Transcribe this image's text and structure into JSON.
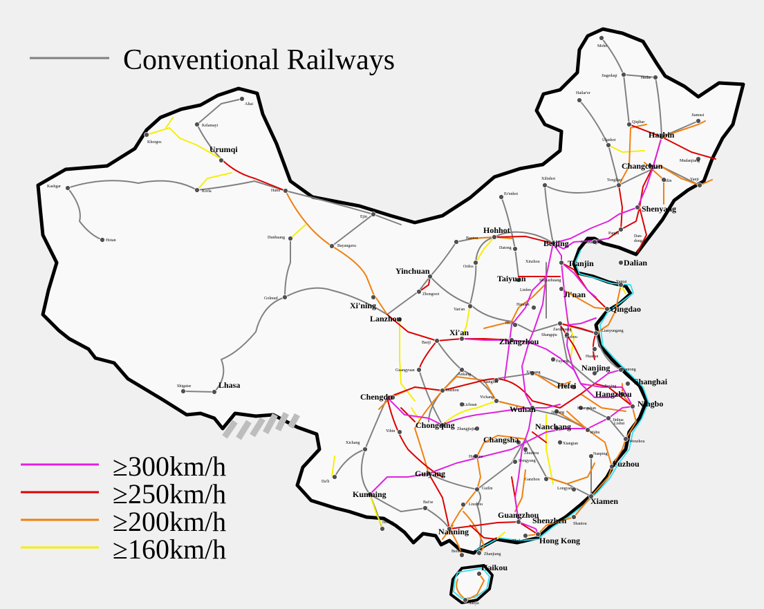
{
  "legend": {
    "conventional": "Conventional Railways",
    "speed_300": "≥300km/h",
    "speed_250": "≥250km/h",
    "speed_200": "≥200km/h",
    "speed_160": "≥160km/h"
  },
  "colors": {
    "conventional": "#808080",
    "speed_300": "#e020e0",
    "speed_250": "#dd0000",
    "speed_200": "#f08010",
    "speed_160": "#f5f000",
    "coast_highlight": "#30e0f0",
    "land": "#f9f9f9",
    "border": "#000000",
    "background": "#f0f0f0"
  },
  "cities_major": [
    "Urumqi",
    "Lhasa",
    "Hohhot",
    "Yinchuan",
    "Xi'ning",
    "Lanzhou",
    "Taiyuan",
    "Xi'an",
    "Zhengzhou",
    "Chengdu",
    "Chongqing",
    "Wuhan",
    "Changsha",
    "Nanchang",
    "Guiyang",
    "Kunming",
    "Nanning",
    "Guangzhou",
    "Shenzhen",
    "Hong Kong",
    "Haikou",
    "Fuzhou",
    "Xiamen",
    "Hangzhou",
    "Ningbo",
    "Shanghai",
    "Nanjing",
    "Hefei",
    "Ji'nan",
    "Qingdao",
    "Beijing",
    "Tianjin",
    "Dalian",
    "Shenyang",
    "Changchun",
    "Harbin"
  ],
  "cities_minor": [
    "Mohe",
    "Jiagedaqi",
    "Heihe",
    "Hailar'er",
    "Qiqihar",
    "Jiamusi",
    "Ulanhot",
    "Mudanjiang",
    "Xilinhot",
    "Tongliao",
    "Jilin",
    "Yanji",
    "Er'enhot",
    "Dan-",
    "dong",
    "Panjin",
    "Baotou",
    "Datong",
    "Qinhuangdao",
    "Ordos",
    "Yan'an",
    "Handan",
    "Yantai",
    "Lianyungang",
    "Xuzhou",
    "Shangqiu",
    "Huai'an",
    "Fuyang",
    "Xinyang",
    "Nantong",
    "Xiangfan",
    "Yichang",
    "Lichuan",
    "Dazhou",
    "Ankang",
    "Guangyuan",
    "Baoji",
    "Zhongwei",
    "Bayangaxu",
    "Dunhuang",
    "Ejin",
    "Golmud",
    "Hami",
    "Korla",
    "Kelamayi",
    "Altai",
    "Khorgos",
    "Kashgar",
    "Hotan",
    "Shigatse",
    "Xichang",
    "Da'li",
    "Yibin",
    "Zhangjiajie",
    "Huaihua",
    "Hengyang",
    "Zhuzhou",
    "Ganzhou",
    "Longyan",
    "Shantou",
    "Zhuhai",
    "Zhanjiang",
    "Beihai",
    "Liuzhou",
    "Guilin",
    "Bai'se",
    "Hekou",
    "Sanya",
    "Wenzhou",
    "Jinhua",
    "Huangshan",
    "Jiujiang",
    "Xiangtan",
    "Nanping",
    "Jiaxing",
    "Wuhu",
    "Zaozhuang",
    "Heze",
    "Shijiazhuang",
    "Linfen",
    "Lishui",
    "Xinzhou"
  ]
}
